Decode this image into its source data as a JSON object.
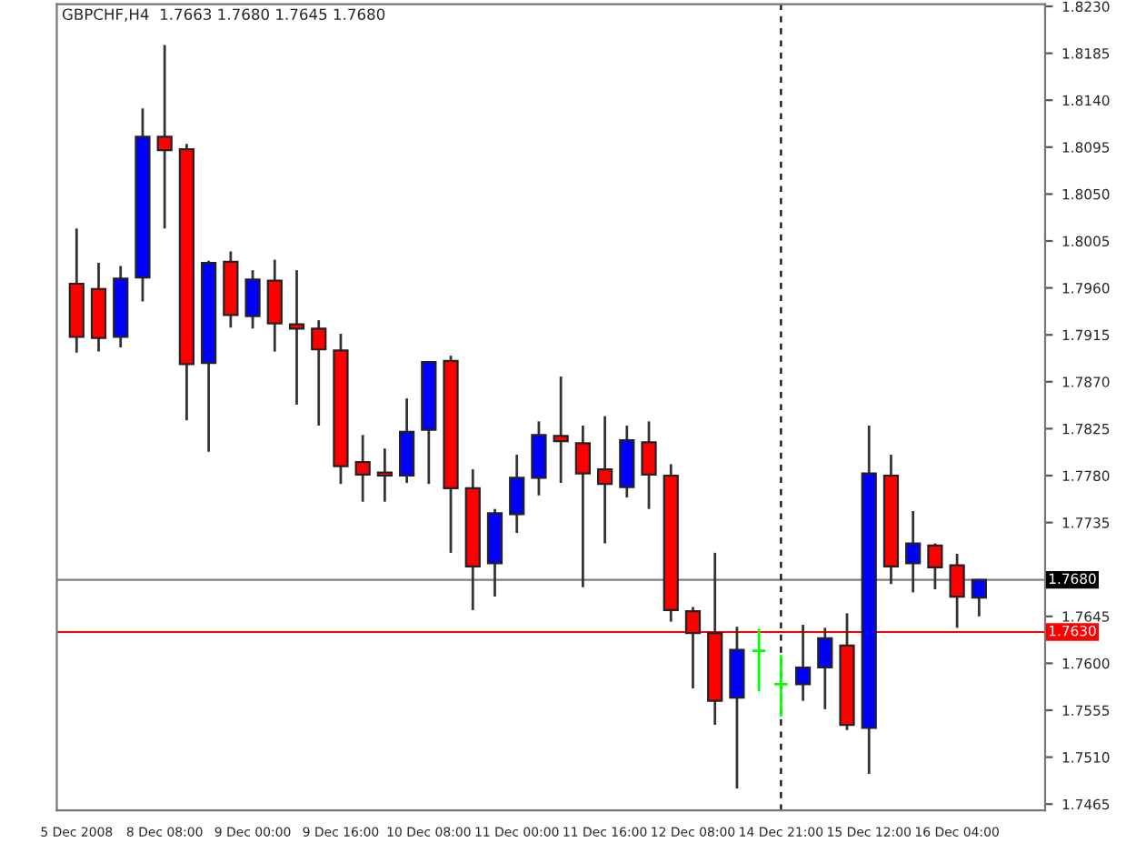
{
  "chart_data": {
    "type": "candlestick",
    "title": "GBPCHF,H4  1.7663 1.7680 1.7645 1.7680",
    "categories": [
      "5 Dec 2008",
      null,
      null,
      null,
      "8 Dec 08:00",
      null,
      null,
      null,
      "9 Dec 00:00",
      null,
      null,
      null,
      "9 Dec 16:00",
      null,
      null,
      null,
      "10 Dec 08:00",
      null,
      null,
      null,
      "11 Dec 00:00",
      null,
      null,
      null,
      "11 Dec 16:00",
      null,
      null,
      null,
      "12 Dec 08:00",
      null,
      null,
      null,
      "14 Dec 21:00",
      null,
      null,
      null,
      "15 Dec 12:00",
      null,
      null,
      null,
      "16 Dec 04:00",
      null
    ],
    "ohlc": [
      [
        1.7964,
        1.8017,
        1.7898,
        1.7913
      ],
      [
        1.7959,
        1.7984,
        1.7899,
        1.7912
      ],
      [
        1.7913,
        1.7981,
        1.7903,
        1.7969
      ],
      [
        1.797,
        1.8132,
        1.7947,
        1.8105
      ],
      [
        1.8105,
        1.8193,
        1.8017,
        1.8092
      ],
      [
        1.8093,
        1.8098,
        1.7833,
        1.7887
      ],
      [
        1.7888,
        1.7986,
        1.7803,
        1.7984
      ],
      [
        1.7985,
        1.7995,
        1.7922,
        1.7934
      ],
      [
        1.7933,
        1.7977,
        1.7921,
        1.7968
      ],
      [
        1.7967,
        1.7987,
        1.7899,
        1.7926
      ],
      [
        1.7925,
        1.7977,
        1.7848,
        1.7921
      ],
      [
        1.7921,
        1.7929,
        1.7828,
        1.7901
      ],
      [
        1.79,
        1.7916,
        1.7772,
        1.7789
      ],
      [
        1.7793,
        1.7819,
        1.7755,
        1.7781
      ],
      [
        1.7783,
        1.7806,
        1.7755,
        1.778
      ],
      [
        1.778,
        1.7854,
        1.7773,
        1.7822
      ],
      [
        1.7824,
        1.789,
        1.7772,
        1.7889
      ],
      [
        1.789,
        1.7895,
        1.7706,
        1.7768
      ],
      [
        1.7768,
        1.7786,
        1.7651,
        1.7693
      ],
      [
        1.7696,
        1.7748,
        1.7664,
        1.7744
      ],
      [
        1.7743,
        1.78,
        1.7725,
        1.7778
      ],
      [
        1.7778,
        1.7832,
        1.7761,
        1.7819
      ],
      [
        1.7818,
        1.7875,
        1.7773,
        1.7813
      ],
      [
        1.7811,
        1.7828,
        1.7673,
        1.7782
      ],
      [
        1.7786,
        1.7837,
        1.7715,
        1.7772
      ],
      [
        1.7769,
        1.7828,
        1.7759,
        1.7814
      ],
      [
        1.7812,
        1.7832,
        1.7748,
        1.7781
      ],
      [
        1.778,
        1.7791,
        1.764,
        1.7651
      ],
      [
        1.765,
        1.7654,
        1.7576,
        1.7629
      ],
      [
        1.7629,
        1.7706,
        1.7541,
        1.7564
      ],
      [
        1.7567,
        1.7635,
        1.748,
        1.7613
      ],
      [
        1.7612,
        1.7633,
        1.7573,
        1.7612
      ],
      [
        1.758,
        1.7608,
        1.7549,
        1.758
      ],
      [
        1.758,
        1.7637,
        1.7564,
        1.7596
      ],
      [
        1.7596,
        1.7634,
        1.7556,
        1.7624
      ],
      [
        1.7617,
        1.7648,
        1.7536,
        1.7541
      ],
      [
        1.7538,
        1.7828,
        1.7494,
        1.7782
      ],
      [
        1.778,
        1.78,
        1.7676,
        1.7693
      ],
      [
        1.7696,
        1.7746,
        1.7668,
        1.7715
      ],
      [
        1.7713,
        1.7715,
        1.7671,
        1.7692
      ],
      [
        1.7694,
        1.7705,
        1.7634,
        1.7664
      ],
      [
        1.7663,
        1.768,
        1.7645,
        1.768
      ]
    ],
    "colors": [
      "#ff0000",
      "#ff0000",
      "#0000ff",
      "#0000ff",
      "#ff0000",
      "#ff0000",
      "#0000ff",
      "#ff0000",
      "#0000ff",
      "#ff0000",
      "#ff0000",
      "#ff0000",
      "#ff0000",
      "#ff0000",
      "#ff0000",
      "#0000ff",
      "#0000ff",
      "#ff0000",
      "#ff0000",
      "#0000ff",
      "#0000ff",
      "#0000ff",
      "#ff0000",
      "#ff0000",
      "#ff0000",
      "#0000ff",
      "#ff0000",
      "#ff0000",
      "#ff0000",
      "#ff0000",
      "#0000ff",
      "#00ff00",
      "#00ff00",
      "#0000ff",
      "#0000ff",
      "#ff0000",
      "#0000ff",
      "#ff0000",
      "#0000ff",
      "#ff0000",
      "#ff0000",
      "#0000ff"
    ],
    "ylim": [
      1.7459,
      1.8232
    ],
    "yticks": [
      {
        "value": 1.823,
        "label": "1.8230"
      },
      {
        "value": 1.8185,
        "label": "1.8185"
      },
      {
        "value": 1.814,
        "label": "1.8140"
      },
      {
        "value": 1.8095,
        "label": "1.8095"
      },
      {
        "value": 1.805,
        "label": "1.8050"
      },
      {
        "value": 1.8005,
        "label": "1.8005"
      },
      {
        "value": 1.796,
        "label": "1.7960"
      },
      {
        "value": 1.7915,
        "label": "1.7915"
      },
      {
        "value": 1.787,
        "label": "1.7870"
      },
      {
        "value": 1.7825,
        "label": "1.7825"
      },
      {
        "value": 1.778,
        "label": "1.7780"
      },
      {
        "value": 1.7735,
        "label": "1.7735"
      },
      {
        "value": 1.7645,
        "label": "1.7645"
      },
      {
        "value": 1.76,
        "label": "1.7600"
      },
      {
        "value": 1.7555,
        "label": "1.7555"
      },
      {
        "value": 1.751,
        "label": "1.7510"
      },
      {
        "value": 1.7465,
        "label": "1.7465"
      }
    ],
    "ref_lines": [
      {
        "axis": "y",
        "value": 1.768,
        "label": "1.7680",
        "color": "#808080",
        "line_style": "solid"
      },
      {
        "axis": "y",
        "value": 1.763,
        "label": "1.7630",
        "color": "#ff0000",
        "line_style": "solid"
      },
      {
        "axis": "x",
        "value": "14 Dec 21:00",
        "color": "#000000",
        "line_style": "dashed"
      }
    ],
    "grid": false,
    "legend": false
  }
}
